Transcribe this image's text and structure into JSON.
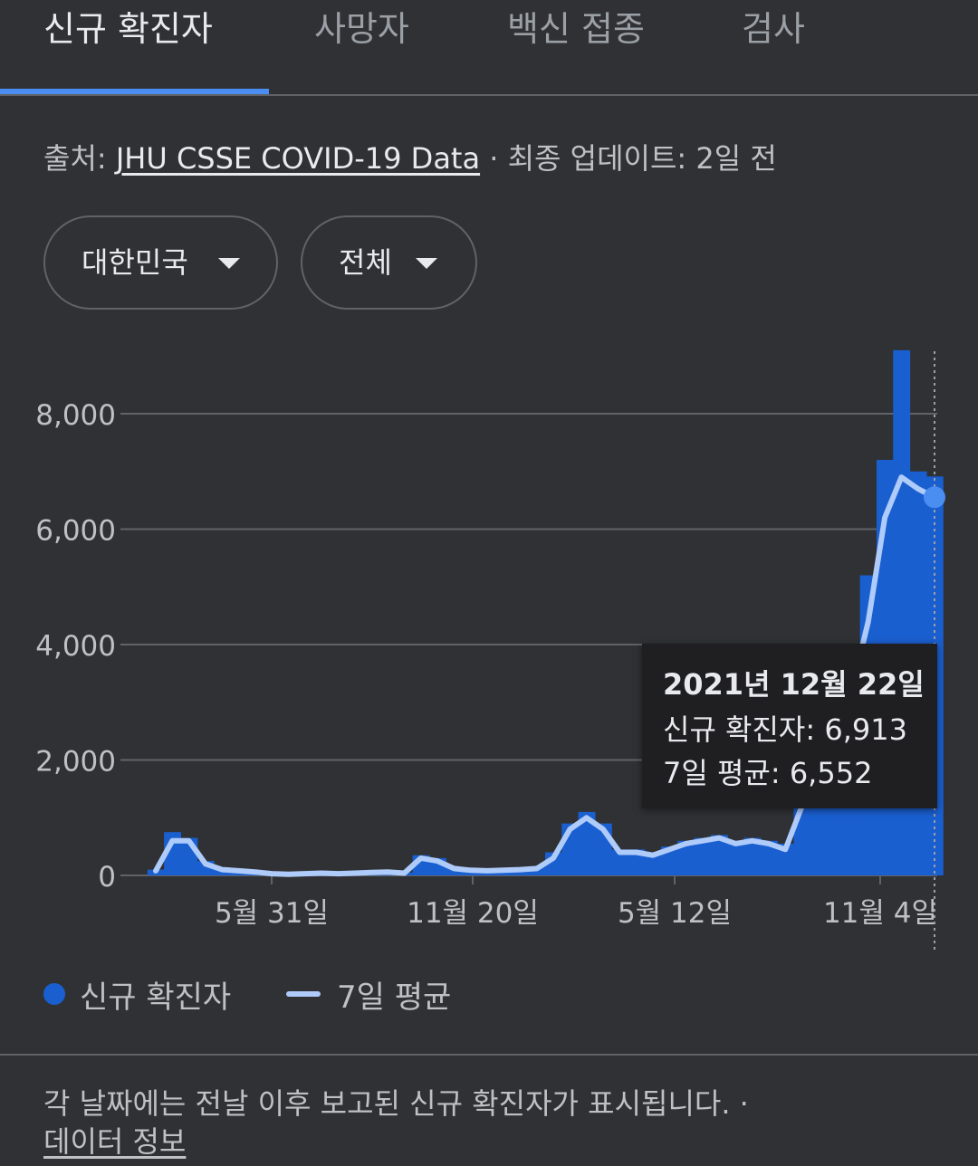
{
  "tabs": [
    {
      "label": "신규 확진자",
      "active": true
    },
    {
      "label": "사망자",
      "active": false
    },
    {
      "label": "백신 접종",
      "active": false
    },
    {
      "label": "검사",
      "active": false
    }
  ],
  "source": {
    "prefix": "출처: ",
    "link": "JHU CSSE COVID-19 Data",
    "suffix": " · 최종 업데이트: 2일 전"
  },
  "filters": {
    "region": "대한민국",
    "range": "전체"
  },
  "tooltip": {
    "date": "2021년 12월 22일",
    "cases_label": "신규 확진자:",
    "cases_value": "6,913",
    "avg_label": "7일 평균:",
    "avg_value": "6,552"
  },
  "legend": {
    "cases": "신규 확진자",
    "average": "7일 평균"
  },
  "footer": {
    "note": "각 날짜에는 전날 이후 보고된 신규 확진자가 표시됩니다.  ·",
    "link": "데이터 정보"
  },
  "colors": {
    "bar": "#1a5fd0",
    "average_line": "#aecbfa",
    "highlight_dot": "#4b8ef1",
    "grid": "#5f6368"
  },
  "chart_data": {
    "type": "area",
    "y_ticks": [
      "8,000",
      "6,000",
      "4,000",
      "2,000",
      "0"
    ],
    "y_tick_values": [
      8000,
      6000,
      4000,
      2000,
      0
    ],
    "x_ticks": [
      "5월 31일",
      "11월 20일",
      "5월 12일",
      "11월 4일"
    ],
    "ylim": [
      0,
      9200
    ],
    "grid": true,
    "legend_position": "bottom-left",
    "series": [
      {
        "name": "신규 확진자",
        "kind": "bars",
        "values": [
          100,
          750,
          650,
          250,
          120,
          100,
          80,
          40,
          30,
          40,
          50,
          40,
          50,
          60,
          70,
          50,
          350,
          300,
          150,
          110,
          100,
          110,
          120,
          150,
          400,
          900,
          1100,
          900,
          450,
          450,
          400,
          500,
          600,
          650,
          700,
          600,
          650,
          600,
          550,
          1400,
          1800,
          2700,
          3800,
          5200,
          7200,
          9100,
          7000,
          6913
        ]
      },
      {
        "name": "7일 평균",
        "kind": "line",
        "values": [
          80,
          600,
          600,
          200,
          100,
          80,
          60,
          30,
          20,
          30,
          40,
          30,
          40,
          50,
          60,
          40,
          300,
          250,
          120,
          90,
          80,
          90,
          100,
          120,
          300,
          800,
          1000,
          800,
          400,
          400,
          350,
          450,
          550,
          600,
          650,
          550,
          600,
          550,
          450,
          1200,
          1600,
          2400,
          3200,
          4400,
          6200,
          6900,
          6700,
          6552
        ]
      }
    ]
  }
}
